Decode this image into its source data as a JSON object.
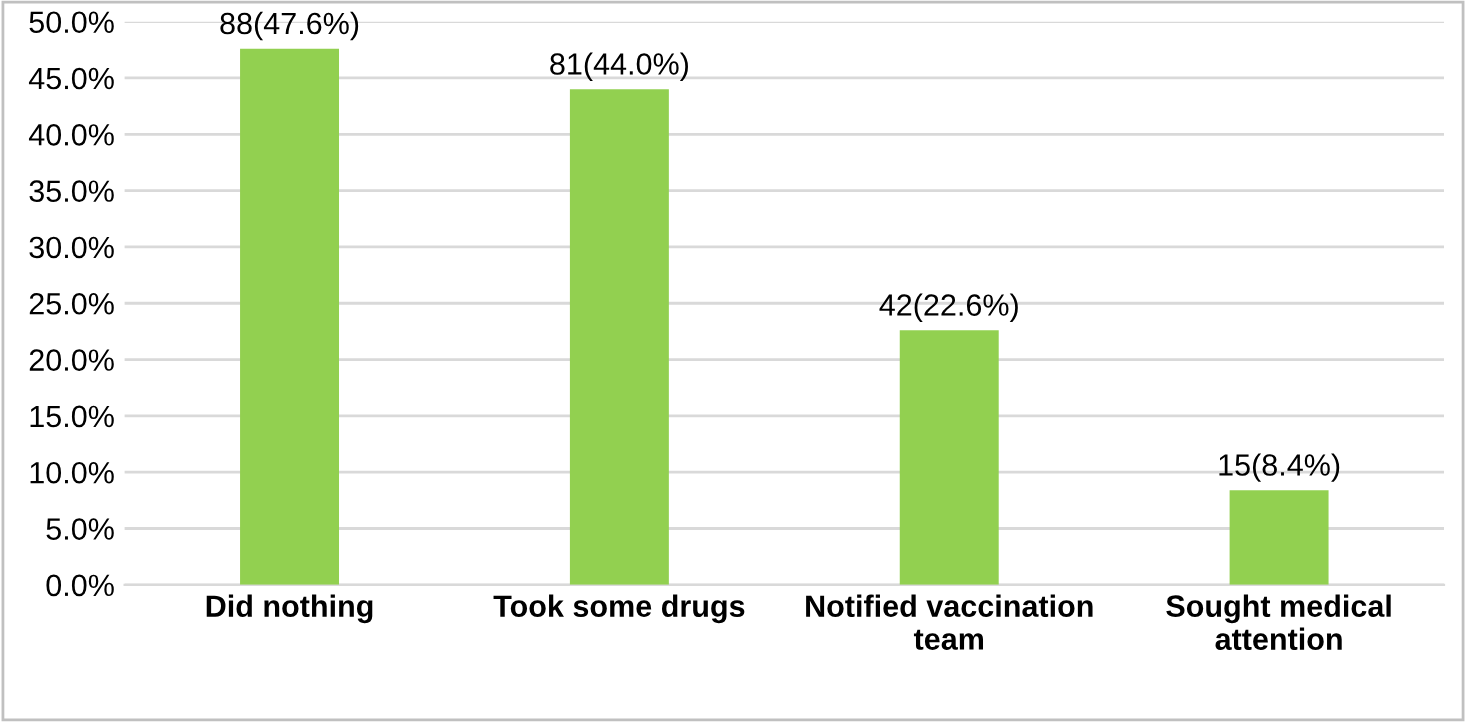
{
  "chart_data": {
    "type": "bar",
    "categories": [
      "Did nothing",
      "Took some drugs",
      "Notified vaccination\nteam",
      "Sought medical\nattention"
    ],
    "values": [
      47.6,
      44.0,
      22.6,
      8.4
    ],
    "value_labels": [
      "88(47.6%)",
      "81(44.0%)",
      "42(22.6%)",
      "15(8.4%)"
    ],
    "color": "#92d050",
    "ylim": [
      0,
      50
    ],
    "yticks": [
      {
        "value": 0,
        "label": "0.0%"
      },
      {
        "value": 5,
        "label": "5.0%"
      },
      {
        "value": 10,
        "label": "10.0%"
      },
      {
        "value": 15,
        "label": "15.0%"
      },
      {
        "value": 20,
        "label": "20.0%"
      },
      {
        "value": 25,
        "label": "25.0%"
      },
      {
        "value": 30,
        "label": "30.0%"
      },
      {
        "value": 35,
        "label": "35.0%"
      },
      {
        "value": 40,
        "label": "40.0%"
      },
      {
        "value": 45,
        "label": "45.0%"
      },
      {
        "value": 50,
        "label": "50.0%"
      }
    ],
    "grid": "y"
  }
}
